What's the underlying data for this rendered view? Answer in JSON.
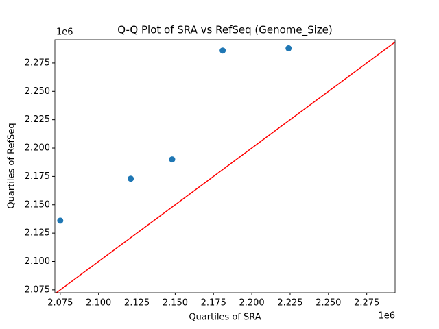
{
  "chart_data": {
    "type": "scatter",
    "title": "Q-Q Plot of SRA vs RefSeq (Genome_Size)",
    "x_label": "Quartiles of SRA",
    "y_label": "Quartiles of RefSeq",
    "x_offset_label": "1e6",
    "y_offset_label": "1e6",
    "series": [
      {
        "color": "#1f77b4",
        "x": [
          2075000,
          2121000,
          2148000,
          2181000,
          2224000
        ],
        "values": [
          2136000,
          2173000,
          2190000,
          2286000,
          2288000
        ]
      }
    ],
    "reference_line": {
      "color": "#ff0000",
      "x": [
        2071500,
        2295500
      ],
      "values": [
        2071500,
        2295500
      ]
    },
    "xlim": [
      2071500,
      2293500
    ],
    "ylim": [
      2072500,
      2295500
    ],
    "xticks": [
      {
        "value": 2075000,
        "label": "2.075"
      },
      {
        "value": 2100000,
        "label": "2.100"
      },
      {
        "value": 2125000,
        "label": "2.125"
      },
      {
        "value": 2150000,
        "label": "2.150"
      },
      {
        "value": 2175000,
        "label": "2.175"
      },
      {
        "value": 2200000,
        "label": "2.200"
      },
      {
        "value": 2225000,
        "label": "2.225"
      },
      {
        "value": 2250000,
        "label": "2.250"
      },
      {
        "value": 2275000,
        "label": "2.275"
      }
    ],
    "yticks": [
      {
        "value": 2075000,
        "label": "2.075"
      },
      {
        "value": 2100000,
        "label": "2.100"
      },
      {
        "value": 2125000,
        "label": "2.125"
      },
      {
        "value": 2150000,
        "label": "2.150"
      },
      {
        "value": 2175000,
        "label": "2.175"
      },
      {
        "value": 2200000,
        "label": "2.200"
      },
      {
        "value": 2225000,
        "label": "2.225"
      },
      {
        "value": 2250000,
        "label": "2.250"
      },
      {
        "value": 2275000,
        "label": "2.275"
      }
    ]
  }
}
